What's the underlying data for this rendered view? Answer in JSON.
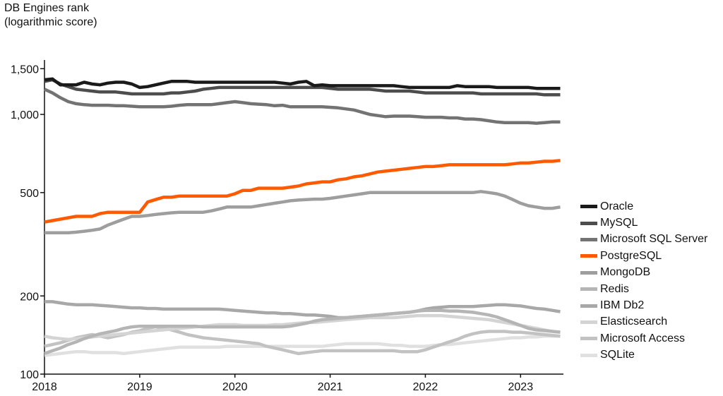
{
  "chart_data": {
    "type": "line",
    "title": "",
    "ylabel_lines": [
      "DB Engines rank",
      "(logarithmic score)"
    ],
    "xlabel": "",
    "yscale": "log",
    "ylim": [
      100,
      1600
    ],
    "y_ticks": [
      {
        "value": 100,
        "label": "100"
      },
      {
        "value": 200,
        "label": "200"
      },
      {
        "value": 500,
        "label": "500"
      },
      {
        "value": 1000,
        "label": "1,000"
      },
      {
        "value": 1500,
        "label": "1,500"
      }
    ],
    "xlim": [
      2018.0,
      2023.45
    ],
    "x_ticks": [
      {
        "value": 2018,
        "label": "2018"
      },
      {
        "value": 2019,
        "label": "2019"
      },
      {
        "value": 2020,
        "label": "2020"
      },
      {
        "value": 2021,
        "label": "2021"
      },
      {
        "value": 2022,
        "label": "2022"
      },
      {
        "value": 2023,
        "label": "2023"
      }
    ],
    "grid": false,
    "legend_position": "right",
    "x": [
      2018.0,
      2018.083,
      2018.167,
      2018.25,
      2018.333,
      2018.417,
      2018.5,
      2018.583,
      2018.667,
      2018.75,
      2018.833,
      2018.917,
      2019.0,
      2019.083,
      2019.167,
      2019.25,
      2019.333,
      2019.417,
      2019.5,
      2019.583,
      2019.667,
      2019.75,
      2019.833,
      2019.917,
      2020.0,
      2020.083,
      2020.167,
      2020.25,
      2020.333,
      2020.417,
      2020.5,
      2020.583,
      2020.667,
      2020.75,
      2020.833,
      2020.917,
      2021.0,
      2021.083,
      2021.167,
      2021.25,
      2021.333,
      2021.417,
      2021.5,
      2021.583,
      2021.667,
      2021.75,
      2021.833,
      2021.917,
      2022.0,
      2022.083,
      2022.167,
      2022.25,
      2022.333,
      2022.417,
      2022.5,
      2022.583,
      2022.667,
      2022.75,
      2022.833,
      2022.917,
      2023.0,
      2023.083,
      2023.167,
      2023.25,
      2023.333,
      2023.417
    ],
    "series": [
      {
        "name": "Oracle",
        "color": "#1a1a1a",
        "values": [
          1360,
          1370,
          1300,
          1300,
          1300,
          1330,
          1310,
          1300,
          1320,
          1330,
          1330,
          1310,
          1270,
          1280,
          1300,
          1320,
          1340,
          1340,
          1340,
          1330,
          1330,
          1330,
          1330,
          1330,
          1330,
          1330,
          1330,
          1330,
          1330,
          1330,
          1320,
          1310,
          1330,
          1340,
          1290,
          1300,
          1290,
          1290,
          1290,
          1290,
          1290,
          1290,
          1290,
          1290,
          1290,
          1280,
          1270,
          1270,
          1270,
          1270,
          1270,
          1270,
          1290,
          1280,
          1280,
          1280,
          1280,
          1270,
          1270,
          1270,
          1270,
          1270,
          1260,
          1260,
          1260,
          1260
        ]
      },
      {
        "name": "MySQL",
        "color": "#4d4d4d",
        "values": [
          1340,
          1360,
          1310,
          1280,
          1250,
          1240,
          1230,
          1220,
          1220,
          1220,
          1210,
          1200,
          1200,
          1200,
          1200,
          1200,
          1210,
          1210,
          1220,
          1230,
          1250,
          1260,
          1270,
          1270,
          1270,
          1270,
          1270,
          1270,
          1270,
          1270,
          1270,
          1270,
          1270,
          1270,
          1270,
          1270,
          1260,
          1250,
          1250,
          1250,
          1250,
          1250,
          1240,
          1230,
          1230,
          1230,
          1230,
          1220,
          1210,
          1210,
          1210,
          1210,
          1210,
          1210,
          1210,
          1200,
          1200,
          1200,
          1200,
          1200,
          1200,
          1200,
          1200,
          1190,
          1190,
          1190
        ]
      },
      {
        "name": "Microsoft SQL Server",
        "color": "#737373",
        "values": [
          1250,
          1210,
          1160,
          1120,
          1100,
          1090,
          1085,
          1085,
          1085,
          1080,
          1080,
          1075,
          1070,
          1070,
          1070,
          1070,
          1075,
          1085,
          1090,
          1090,
          1090,
          1090,
          1100,
          1110,
          1120,
          1110,
          1100,
          1095,
          1090,
          1080,
          1085,
          1070,
          1070,
          1070,
          1070,
          1070,
          1065,
          1060,
          1050,
          1040,
          1020,
          1000,
          990,
          980,
          985,
          985,
          985,
          980,
          975,
          975,
          975,
          970,
          970,
          960,
          960,
          955,
          945,
          935,
          930,
          930,
          930,
          930,
          925,
          930,
          935,
          935
        ]
      },
      {
        "name": "PostgreSQL",
        "color": "#ff5a00",
        "values": [
          385,
          390,
          395,
          400,
          405,
          405,
          405,
          415,
          420,
          420,
          420,
          420,
          420,
          460,
          470,
          480,
          480,
          485,
          485,
          485,
          485,
          485,
          485,
          485,
          495,
          510,
          510,
          520,
          520,
          520,
          520,
          525,
          530,
          540,
          545,
          550,
          550,
          560,
          565,
          575,
          580,
          590,
          600,
          605,
          610,
          615,
          620,
          625,
          630,
          630,
          635,
          640,
          640,
          640,
          640,
          640,
          640,
          640,
          640,
          645,
          650,
          650,
          655,
          660,
          660,
          665
        ]
      },
      {
        "name": "MongoDB",
        "color": "#9e9e9e",
        "values": [
          350,
          350,
          350,
          350,
          352,
          355,
          358,
          362,
          375,
          385,
          395,
          405,
          405,
          408,
          412,
          415,
          418,
          420,
          420,
          420,
          420,
          425,
          432,
          440,
          440,
          440,
          440,
          445,
          450,
          455,
          460,
          465,
          468,
          470,
          472,
          472,
          475,
          480,
          485,
          490,
          495,
          500,
          500,
          500,
          500,
          500,
          500,
          500,
          500,
          500,
          500,
          500,
          500,
          500,
          500,
          505,
          500,
          495,
          485,
          470,
          455,
          445,
          440,
          435,
          435,
          440
        ]
      },
      {
        "name": "Redis",
        "color": "#b5b5b5",
        "values": [
          120,
          123,
          126,
          130,
          133,
          137,
          140,
          143,
          145,
          147,
          150,
          152,
          153,
          153,
          153,
          153,
          153,
          153,
          153,
          153,
          152,
          152,
          152,
          152,
          152,
          152,
          152,
          152,
          152,
          152,
          152,
          153,
          155,
          157,
          160,
          162,
          163,
          164,
          165,
          166,
          167,
          168,
          169,
          170,
          171,
          172,
          173,
          175,
          176,
          176,
          176,
          175,
          175,
          174,
          173,
          171,
          169,
          166,
          162,
          158,
          154,
          150,
          148,
          147,
          146,
          145
        ]
      },
      {
        "name": "IBM Db2",
        "color": "#a8a8a8",
        "values": [
          190,
          190,
          188,
          186,
          185,
          185,
          185,
          184,
          183,
          182,
          181,
          180,
          180,
          179,
          179,
          178,
          178,
          178,
          178,
          178,
          178,
          178,
          178,
          177,
          176,
          175,
          174,
          173,
          172,
          172,
          171,
          171,
          170,
          169,
          169,
          168,
          167,
          165,
          165,
          166,
          167,
          168,
          169,
          170,
          171,
          172,
          173,
          175,
          178,
          180,
          181,
          182,
          182,
          182,
          182,
          183,
          184,
          185,
          185,
          184,
          183,
          181,
          179,
          178,
          176,
          174
        ]
      },
      {
        "name": "Elasticsearch",
        "color": "#d4d4d4",
        "values": [
          140,
          138,
          137,
          136,
          137,
          138,
          139,
          140,
          141,
          142,
          143,
          144,
          145,
          146,
          147,
          148,
          149,
          150,
          151,
          152,
          153,
          154,
          155,
          155,
          155,
          154,
          154,
          154,
          154,
          155,
          155,
          156,
          157,
          158,
          158,
          159,
          160,
          161,
          162,
          163,
          164,
          165,
          165,
          165,
          165,
          166,
          167,
          168,
          168,
          168,
          168,
          167,
          166,
          165,
          164,
          163,
          162,
          160,
          158,
          156,
          154,
          152,
          150,
          148,
          146,
          145
        ]
      },
      {
        "name": "Microsoft Access",
        "color": "#c2c2c2",
        "values": [
          128,
          130,
          132,
          135,
          138,
          140,
          142,
          140,
          138,
          140,
          142,
          145,
          147,
          150,
          152,
          150,
          148,
          145,
          142,
          140,
          138,
          137,
          136,
          135,
          134,
          133,
          132,
          131,
          128,
          126,
          124,
          122,
          120,
          121,
          122,
          123,
          123,
          123,
          123,
          123,
          123,
          123,
          123,
          123,
          123,
          122,
          122,
          122,
          124,
          127,
          130,
          133,
          136,
          140,
          143,
          145,
          146,
          146,
          146,
          145,
          145,
          144,
          143,
          142,
          141,
          140
        ]
      },
      {
        "name": "SQLite",
        "color": "#e0e0e0",
        "values": [
          118,
          119,
          120,
          121,
          122,
          122,
          121,
          121,
          121,
          121,
          120,
          121,
          122,
          123,
          124,
          125,
          126,
          127,
          127,
          127,
          127,
          127,
          127,
          128,
          128,
          128,
          128,
          128,
          128,
          128,
          128,
          128,
          128,
          128,
          128,
          128,
          129,
          130,
          131,
          131,
          131,
          131,
          131,
          130,
          129,
          129,
          128,
          128,
          128,
          129,
          130,
          130,
          131,
          132,
          133,
          134,
          135,
          136,
          137,
          138,
          138,
          139,
          139,
          140,
          140,
          140
        ]
      }
    ]
  }
}
